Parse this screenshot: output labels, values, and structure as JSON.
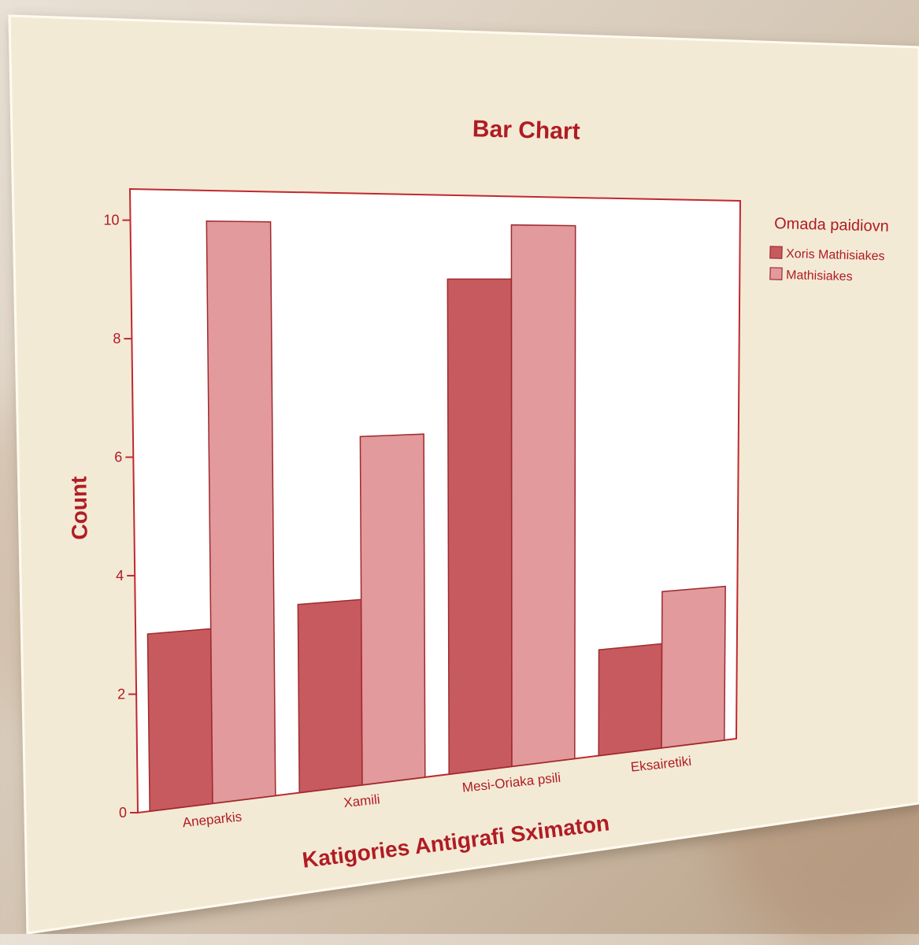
{
  "chart_data": {
    "type": "bar",
    "title": "Bar Chart",
    "xlabel": "Katigories Antigrafi Sximaton",
    "ylabel": "Count",
    "categories": [
      "Aneparkis",
      "Xamili",
      "Mesi-Oriaka psili",
      "Eksairetiki"
    ],
    "series": [
      {
        "name": "Xoris Mathisiakes",
        "values": [
          3,
          3.3,
          9,
          2
        ],
        "color": "#c75a5f"
      },
      {
        "name": "Mathisiakes",
        "values": [
          10,
          6.2,
          10,
          3
        ],
        "color": "#e29a9c"
      }
    ],
    "ylim": [
      0,
      10
    ],
    "yticks": [
      "0",
      "2",
      "4",
      "6",
      "8",
      "10"
    ],
    "legend_title": "Omada paidiovn",
    "legend_position": "right",
    "grid": false
  }
}
